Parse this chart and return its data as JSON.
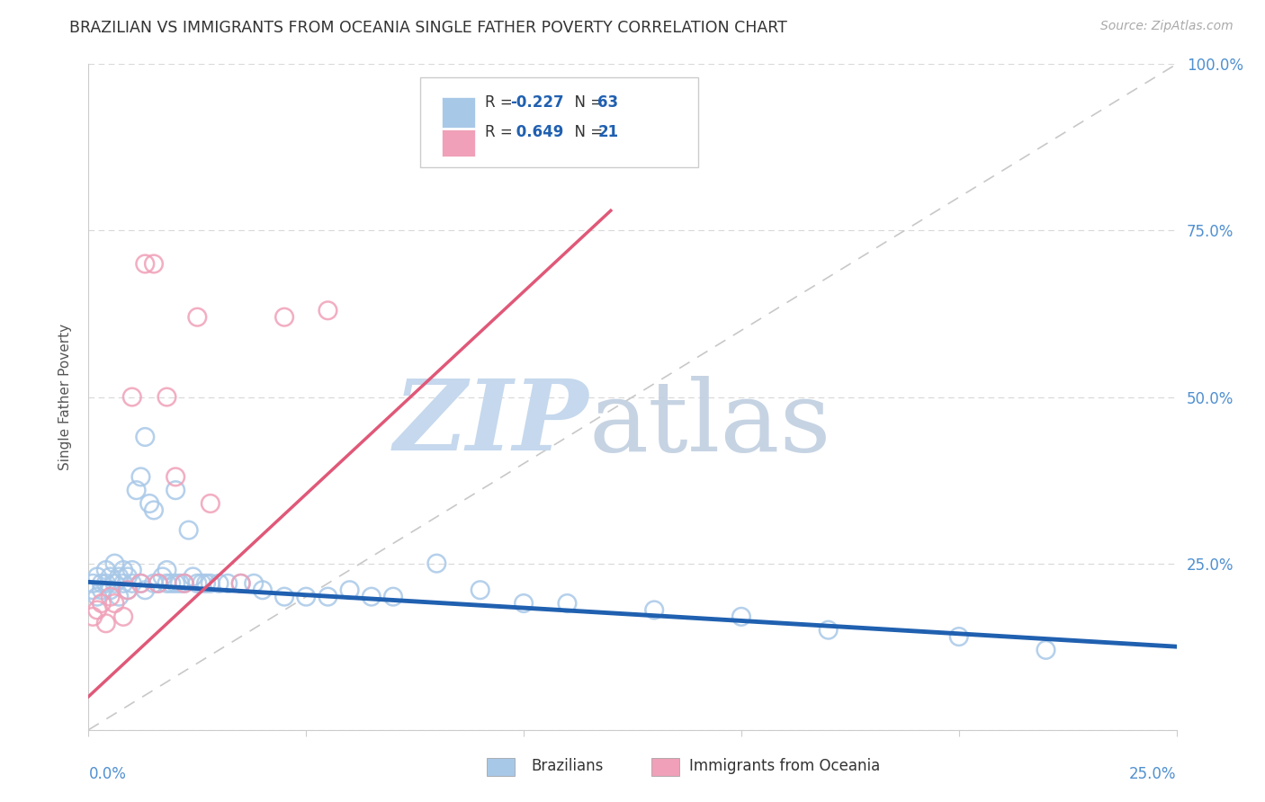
{
  "title": "BRAZILIAN VS IMMIGRANTS FROM OCEANIA SINGLE FATHER POVERTY CORRELATION CHART",
  "source": "Source: ZipAtlas.com",
  "ylabel": "Single Father Poverty",
  "blue_color": "#a8c8e8",
  "pink_color": "#f0a0b8",
  "blue_line_color": "#2060b0",
  "pink_line_color": "#e05878",
  "diag_line_color": "#c8c8c8",
  "grid_color": "#d8d8d8",
  "axis_label_color": "#5090d0",
  "right_tick_labels": [
    "100.0%",
    "75.0%",
    "50.0%",
    "25.0%"
  ],
  "xlim": [
    0,
    0.25
  ],
  "ylim": [
    0,
    1.0
  ],
  "blue_scatter_x": [
    0.001,
    0.001,
    0.002,
    0.002,
    0.003,
    0.003,
    0.004,
    0.004,
    0.005,
    0.005,
    0.006,
    0.006,
    0.007,
    0.007,
    0.008,
    0.008,
    0.009,
    0.009,
    0.01,
    0.01,
    0.011,
    0.012,
    0.012,
    0.013,
    0.013,
    0.014,
    0.015,
    0.015,
    0.016,
    0.017,
    0.018,
    0.018,
    0.019,
    0.02,
    0.02,
    0.021,
    0.022,
    0.023,
    0.024,
    0.025,
    0.026,
    0.027,
    0.028,
    0.03,
    0.032,
    0.035,
    0.038,
    0.04,
    0.045,
    0.05,
    0.055,
    0.06,
    0.065,
    0.07,
    0.08,
    0.09,
    0.1,
    0.11,
    0.13,
    0.15,
    0.17,
    0.2,
    0.22
  ],
  "blue_scatter_y": [
    0.21,
    0.22,
    0.2,
    0.23,
    0.21,
    0.22,
    0.22,
    0.24,
    0.21,
    0.23,
    0.22,
    0.25,
    0.2,
    0.23,
    0.22,
    0.24,
    0.21,
    0.23,
    0.22,
    0.24,
    0.36,
    0.22,
    0.38,
    0.21,
    0.44,
    0.34,
    0.22,
    0.33,
    0.22,
    0.23,
    0.22,
    0.24,
    0.22,
    0.22,
    0.36,
    0.22,
    0.22,
    0.3,
    0.23,
    0.22,
    0.22,
    0.22,
    0.22,
    0.22,
    0.22,
    0.22,
    0.22,
    0.21,
    0.2,
    0.2,
    0.2,
    0.21,
    0.2,
    0.2,
    0.25,
    0.21,
    0.19,
    0.19,
    0.18,
    0.17,
    0.15,
    0.14,
    0.12
  ],
  "pink_scatter_x": [
    0.001,
    0.002,
    0.003,
    0.004,
    0.005,
    0.006,
    0.008,
    0.009,
    0.01,
    0.012,
    0.013,
    0.015,
    0.016,
    0.018,
    0.02,
    0.022,
    0.025,
    0.028,
    0.035,
    0.045,
    0.055
  ],
  "pink_scatter_y": [
    0.17,
    0.18,
    0.19,
    0.16,
    0.2,
    0.19,
    0.17,
    0.21,
    0.5,
    0.22,
    0.7,
    0.7,
    0.22,
    0.5,
    0.38,
    0.22,
    0.62,
    0.34,
    0.22,
    0.62,
    0.63
  ],
  "blue_line_x0": 0.0,
  "blue_line_y0": 0.222,
  "blue_line_x1": 0.25,
  "blue_line_y1": 0.125,
  "pink_line_x0": 0.0,
  "pink_line_y0": 0.05,
  "pink_line_x1": 0.12,
  "pink_line_y1": 0.78
}
